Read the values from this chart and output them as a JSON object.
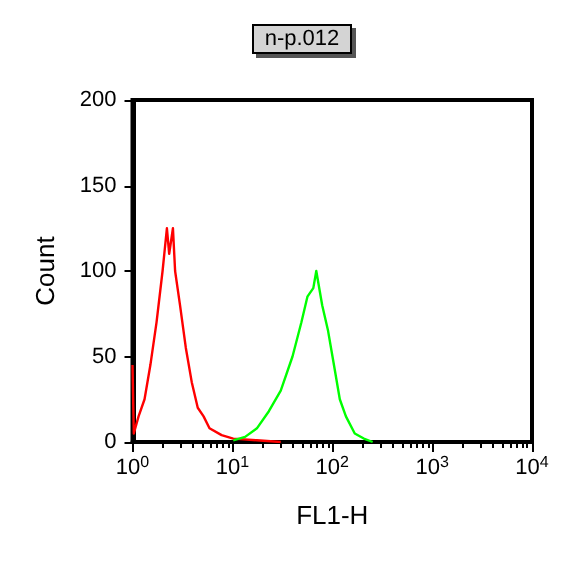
{
  "chart_data": {
    "type": "line",
    "title": "n-p.012",
    "xlabel": "FL1-H",
    "ylabel": "Count",
    "log": "x",
    "xlim": [
      1,
      10000
    ],
    "xticks": [
      {
        "value": 1,
        "label": "10$^{0}$"
      },
      {
        "value": 10,
        "label": "10$^{1}$"
      },
      {
        "value": 100,
        "label": "10$^{2}$"
      },
      {
        "value": 1000,
        "label": "10$^{3}$"
      },
      {
        "value": 10000,
        "label": "10$^{4}$"
      }
    ],
    "ylim": [
      0,
      200
    ],
    "yticks": [
      0,
      50,
      100,
      150,
      200
    ],
    "grid": false,
    "marker": "none",
    "line_style": "solid",
    "series": [
      {
        "color": "#ff0000",
        "x": [
          1.0,
          1.03,
          1.15,
          1.32,
          1.51,
          1.74,
          2.0,
          2.21,
          2.33,
          2.54,
          2.67,
          2.99,
          3.42,
          3.92,
          4.5,
          5.15,
          5.9,
          7.8,
          10.2,
          17.6,
          30.5
        ],
        "values": [
          45,
          5,
          15,
          25,
          45,
          70,
          100,
          125,
          110,
          125,
          100,
          80,
          55,
          35,
          20,
          15,
          8,
          4,
          2,
          1,
          0
        ]
      },
      {
        "color": "#00ff00",
        "x": [
          10.2,
          13.4,
          17.6,
          23.2,
          30.5,
          40,
          49.1,
          56.4,
          64.6,
          69.2,
          79.3,
          90.8,
          104,
          119,
          137,
          168,
          207,
          254
        ],
        "values": [
          1,
          3,
          8,
          18,
          30,
          50,
          70,
          85,
          90,
          100,
          80,
          65,
          45,
          25,
          15,
          5,
          2,
          0
        ]
      }
    ]
  }
}
